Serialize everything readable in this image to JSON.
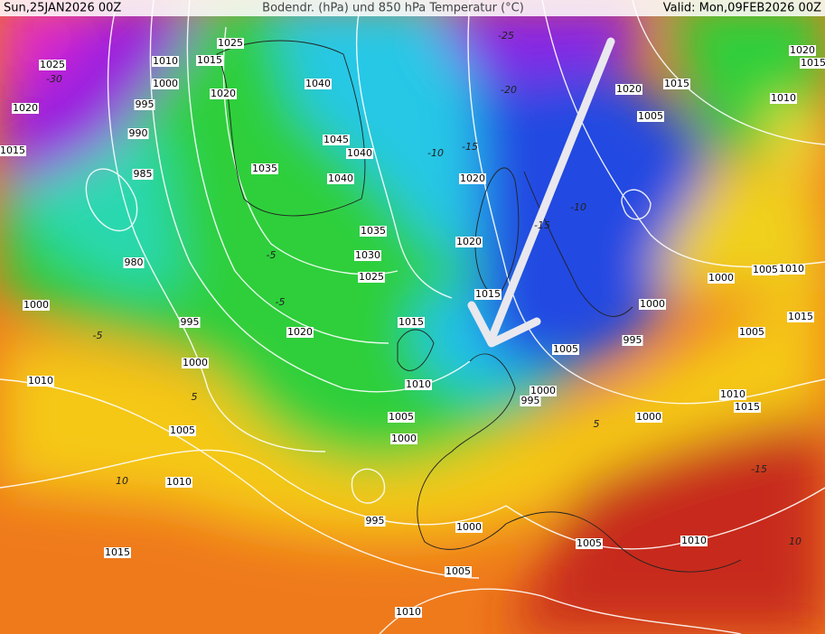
{
  "header": {
    "left": "Sun,25JAN2026 00Z",
    "title": "Bodendr. (hPa) und 850 hPa Temperatur (°C)",
    "right": "Valid: Mon,09FEB2026 00Z"
  },
  "pressure_labels": [
    "1025",
    "1015",
    "1010",
    "1000",
    "1020",
    "995",
    "990",
    "985",
    "980",
    "1040",
    "1045",
    "1040",
    "1040",
    "1035",
    "1035",
    "1030",
    "1025",
    "1020",
    "995",
    "1000",
    "1010",
    "1005",
    "1010",
    "1015",
    "1000",
    "1020",
    "1015",
    "1025",
    "1020",
    "1020",
    "1015",
    "1015",
    "1010",
    "1005",
    "1000",
    "995",
    "1000",
    "1005",
    "1010",
    "1005",
    "1000",
    "995",
    "995",
    "1000",
    "1000",
    "1000",
    "1005",
    "1010",
    "1015",
    "1005",
    "1010",
    "1015",
    "1005",
    "1010",
    "1020",
    "1015",
    "1020",
    "1015",
    "1010",
    "1005"
  ],
  "temperature_labels": [
    "-30",
    "-10",
    "-15",
    "-20",
    "-5",
    "5",
    "10",
    "-15",
    "-5",
    "-10",
    "-5",
    "5",
    "-15",
    "-25",
    "10"
  ]
}
